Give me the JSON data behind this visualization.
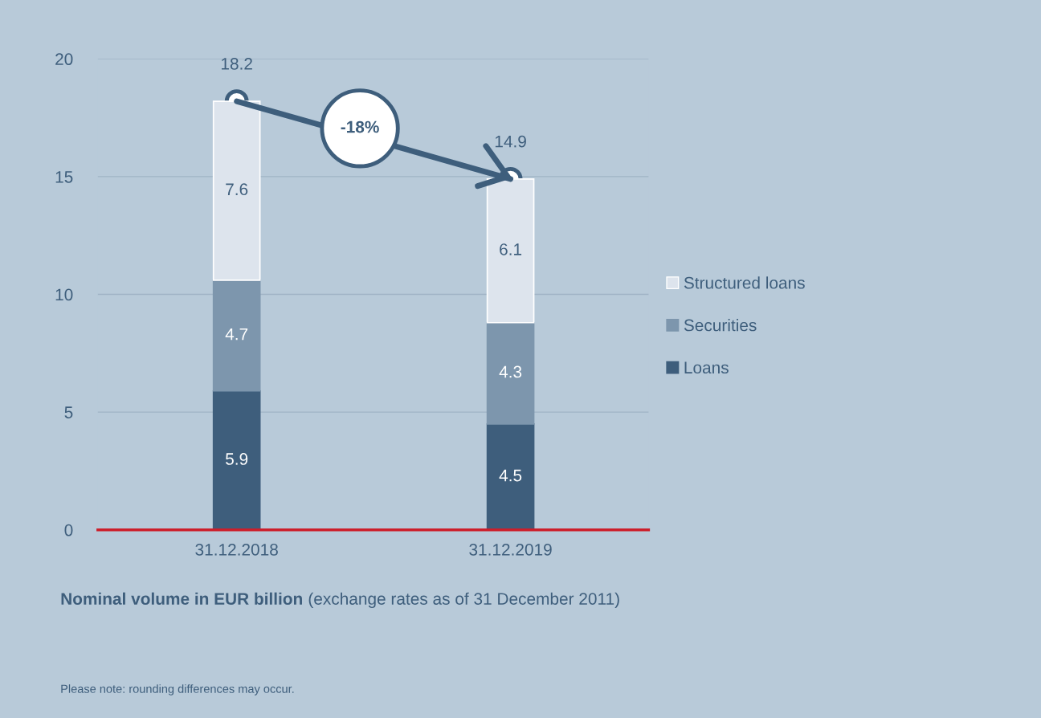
{
  "chart_data": {
    "type": "bar",
    "stacked": true,
    "title": "Nominal volume in EUR billion",
    "subtitle": "(exchange rates as of 31 December 2011)",
    "categories": [
      "31.12.2018",
      "31.12.2019"
    ],
    "series": [
      {
        "name": "Loans",
        "color": "#3e5e7c",
        "values": [
          5.9,
          4.5
        ]
      },
      {
        "name": "Securities",
        "color": "#7d96ad",
        "values": [
          4.7,
          4.3
        ]
      },
      {
        "name": "Structured loans",
        "color": "#dde4ed",
        "values": [
          7.6,
          6.1
        ]
      }
    ],
    "totals": [
      "18.2",
      "14.9"
    ],
    "data_labels": true,
    "ylim": [
      0,
      20
    ],
    "yticks": [
      0,
      5,
      10,
      15,
      20
    ],
    "grid": "y",
    "legend": "right",
    "annotations": [
      "-18%",
      "Please note: rounding differences may occur."
    ]
  }
}
